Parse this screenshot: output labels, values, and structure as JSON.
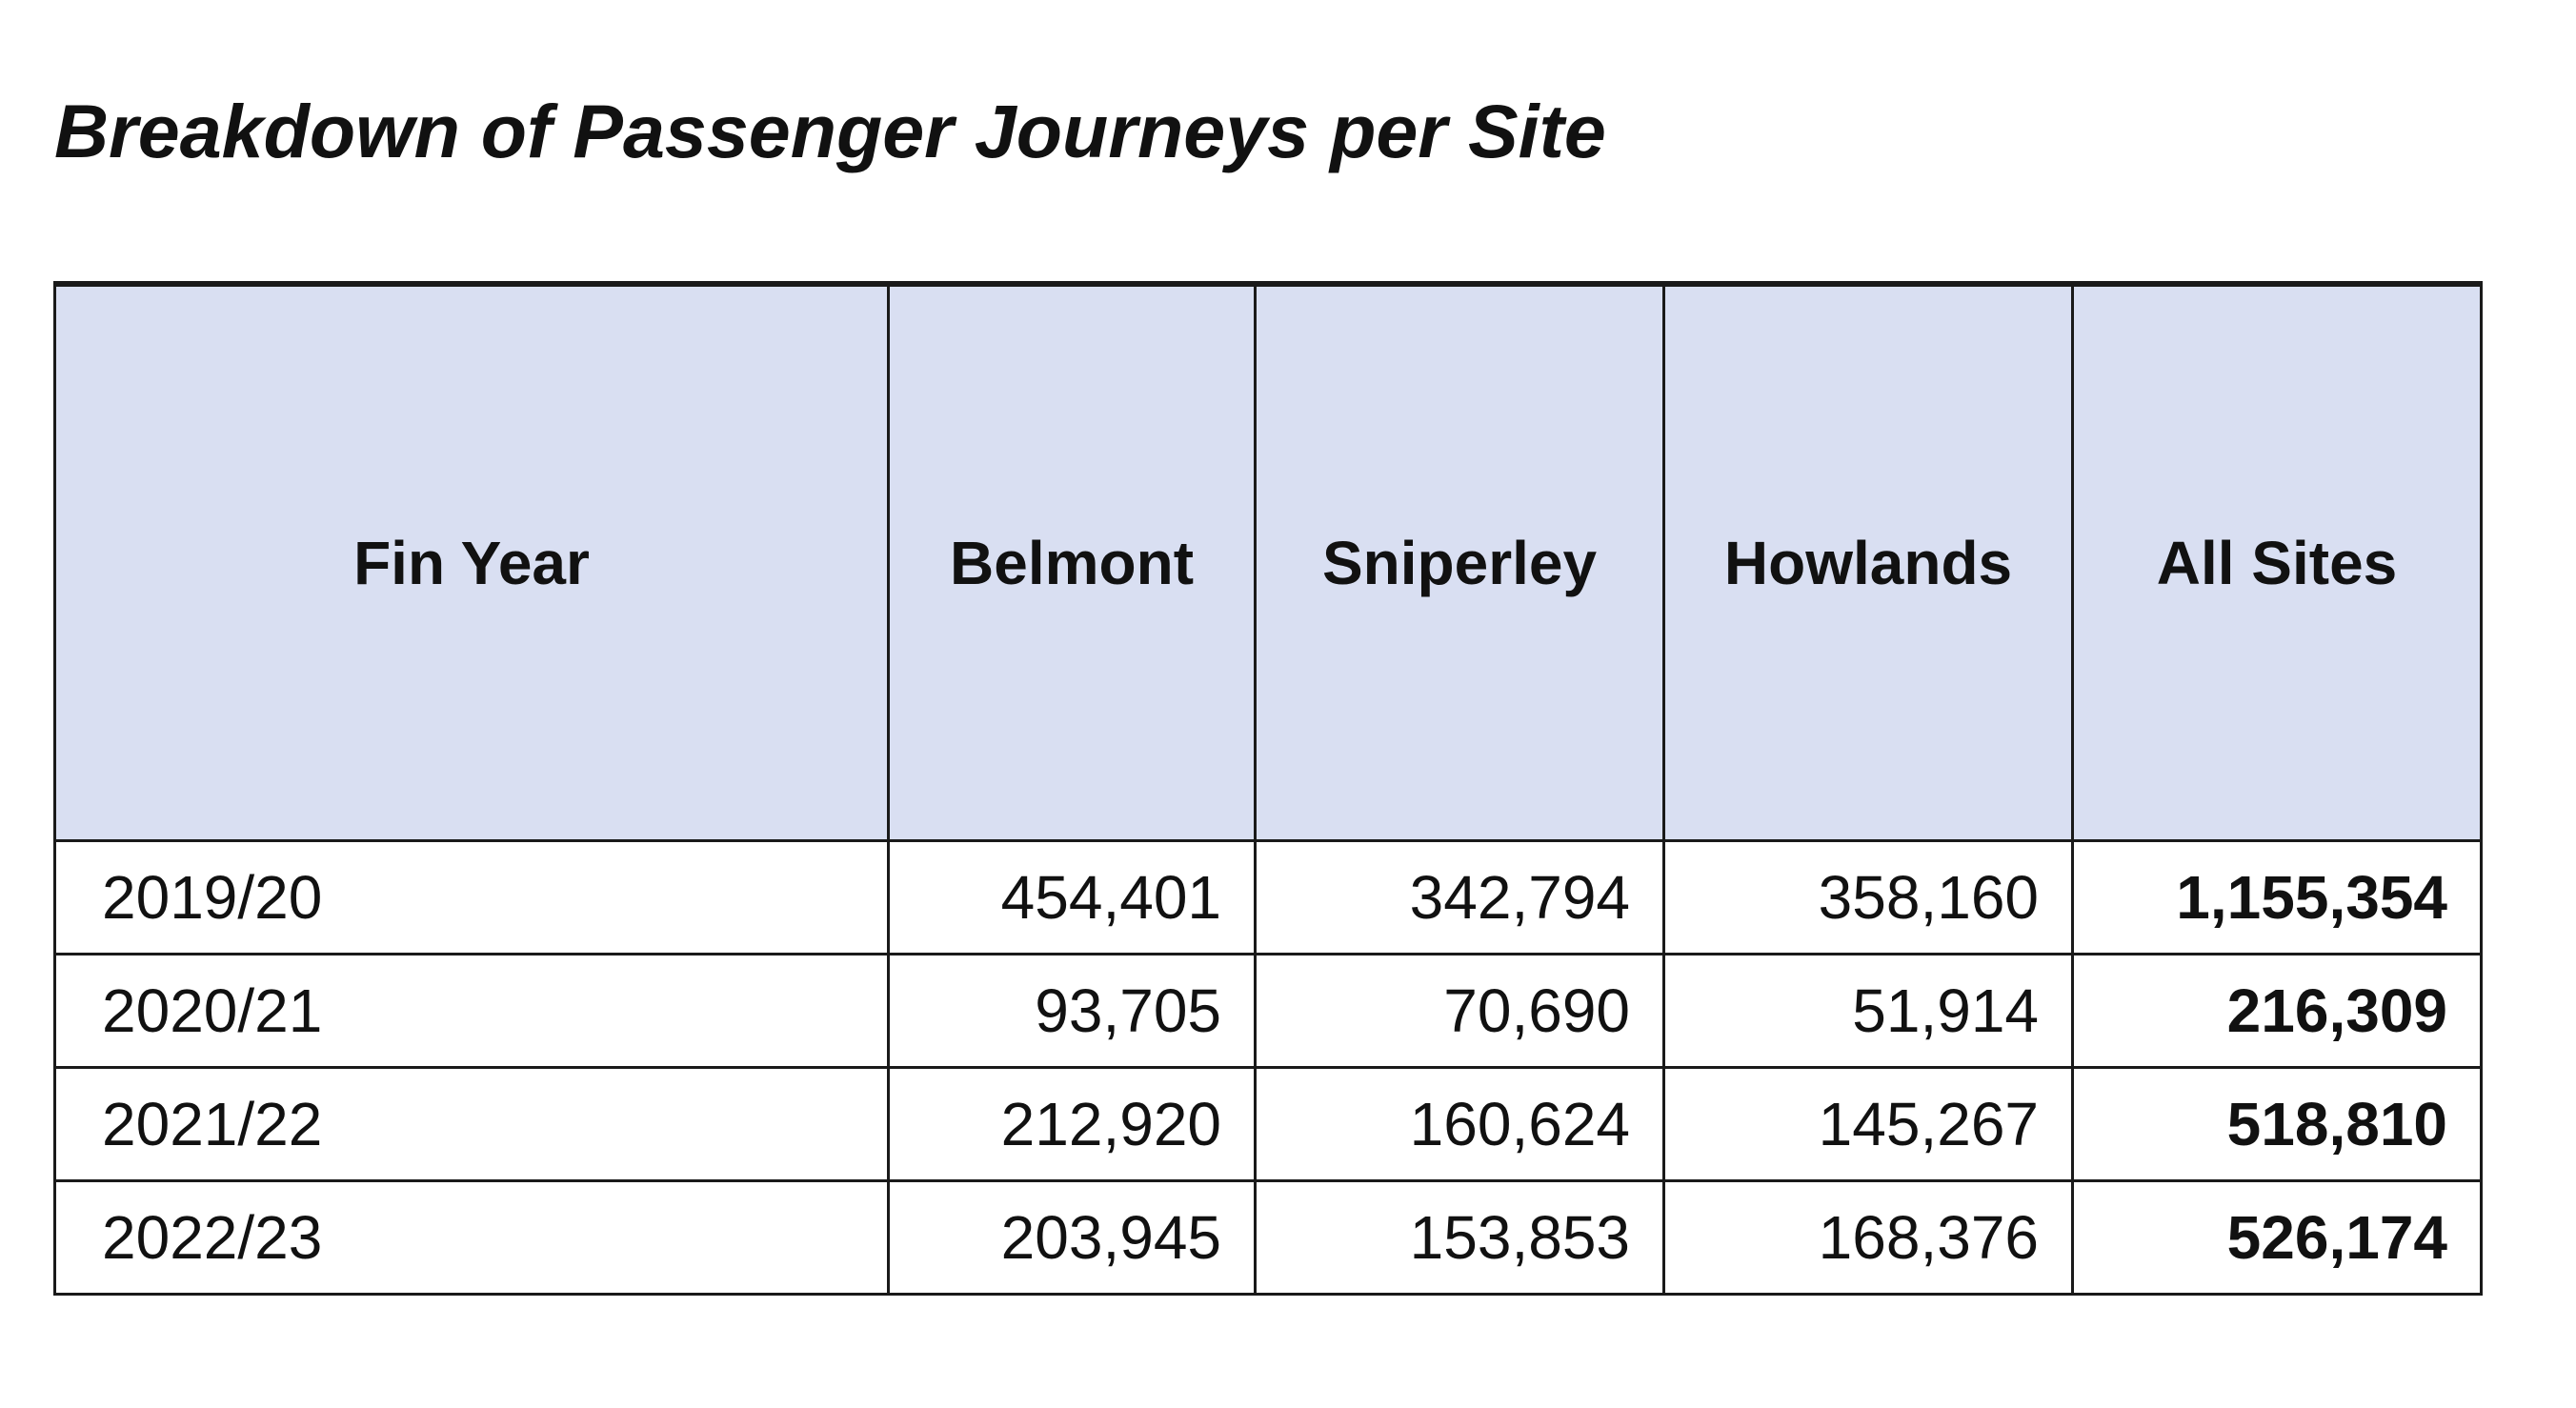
{
  "title": "Breakdown of Passenger Journeys per Site",
  "table": {
    "headers": [
      "Fin Year",
      "Belmont",
      "Sniperley",
      "Howlands",
      "All Sites"
    ],
    "rows": [
      {
        "year": "2019/20",
        "belmont": "454,401",
        "sniperley": "342,794",
        "howlands": "358,160",
        "all_sites": "1,155,354"
      },
      {
        "year": "2020/21",
        "belmont": "93,705",
        "sniperley": "70,690",
        "howlands": "51,914",
        "all_sites": "216,309"
      },
      {
        "year": "2021/22",
        "belmont": "212,920",
        "sniperley": "160,624",
        "howlands": "145,267",
        "all_sites": "518,810"
      },
      {
        "year": "2022/23",
        "belmont": "203,945",
        "sniperley": "153,853",
        "howlands": "168,376",
        "all_sites": "526,174"
      }
    ]
  },
  "colors": {
    "header_background": "#d9dff2",
    "border": "#1a1a1a",
    "text": "#111111"
  }
}
